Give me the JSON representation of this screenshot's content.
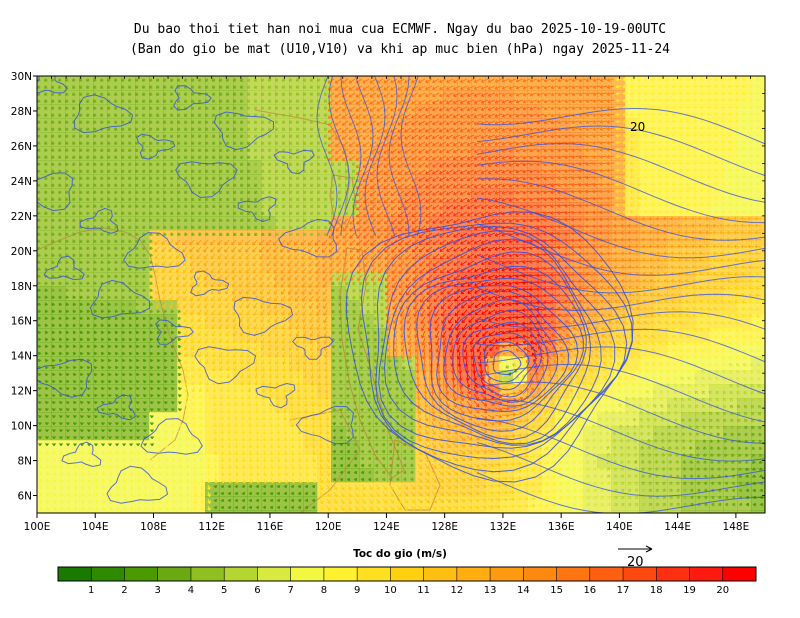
{
  "title": {
    "line1": "Du bao thoi tiet han noi mua cua ECMWF. Ngay du bao 2025-10-19-00UTC",
    "line2": "(Ban do gio be mat (U10,V10) va khi ap muc bien (hPa) ngay 2025-11-24"
  },
  "map": {
    "lon_range": [
      100,
      150
    ],
    "lat_range": [
      5,
      30
    ],
    "lon_ticks": [
      "100E",
      "104E",
      "108E",
      "112E",
      "116E",
      "120E",
      "124E",
      "128E",
      "132E",
      "136E",
      "140E",
      "144E",
      "148E"
    ],
    "lat_ticks": [
      "30N",
      "28N",
      "26N",
      "24N",
      "22N",
      "20N",
      "18N",
      "16N",
      "14N",
      "12N",
      "10N",
      "8N",
      "6N"
    ],
    "cyclone_center": {
      "lon": 132.3,
      "lat": 13.5
    },
    "pressure_label": "20",
    "contour_color": "#3050e0"
  },
  "colorbar": {
    "label": "Toc do gio (m/s)",
    "ticks": [
      "1",
      "2",
      "3",
      "4",
      "5",
      "6",
      "7",
      "8",
      "9",
      "10",
      "11",
      "12",
      "13",
      "14",
      "15",
      "16",
      "17",
      "18",
      "19",
      "20"
    ],
    "colors": [
      "#1a7a00",
      "#2e8b00",
      "#4a9a00",
      "#6aaa10",
      "#8fc020",
      "#b5d630",
      "#d8ea40",
      "#f2f840",
      "#fff030",
      "#ffe020",
      "#ffd010",
      "#ffbf10",
      "#ffad10",
      "#ff9a10",
      "#ff8810",
      "#ff7510",
      "#ff6010",
      "#ff4810",
      "#ff3010",
      "#ff1a10",
      "#ff0000"
    ]
  },
  "reference_vector": {
    "label": "20"
  }
}
